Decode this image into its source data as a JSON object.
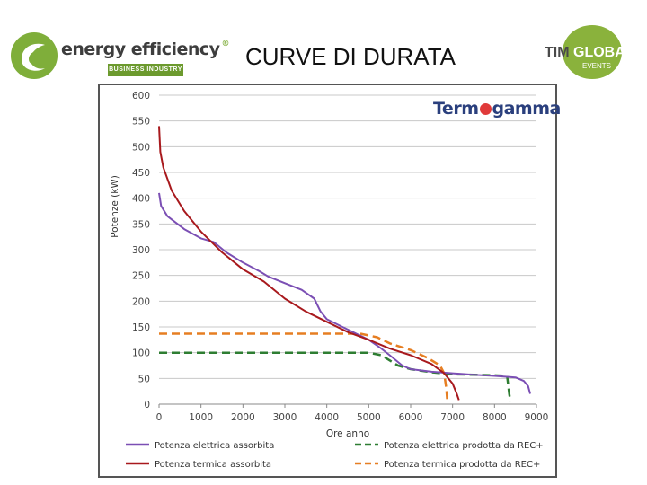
{
  "header": {
    "title": "CURVE DI DURATA",
    "left_logo": {
      "brand": "energy efficiency",
      "reg": "®",
      "tagline": "BUSINESS INDUSTRY"
    },
    "right_logo": {
      "part1": "TIM",
      "part2": "GLOBAL",
      "sub": "EVENTS"
    },
    "chart_logo": {
      "before": "Term",
      "after": "gamma"
    }
  },
  "colors": {
    "purple": "#7b4fb4",
    "dark_red": "#a8191d",
    "dark_green": "#2e7d32",
    "orange": "#e67e22",
    "brand_green": "#7fae3a"
  },
  "chart_data": {
    "type": "line",
    "title": "",
    "xlabel": "Ore anno",
    "ylabel": "Potenze (kW)",
    "xlim": [
      0,
      9000
    ],
    "ylim": [
      0,
      600
    ],
    "x_ticks": [
      0,
      1000,
      2000,
      3000,
      4000,
      5000,
      6000,
      7000,
      8000,
      9000
    ],
    "y_ticks": [
      0,
      50,
      100,
      150,
      200,
      250,
      300,
      350,
      400,
      450,
      500,
      550,
      600
    ],
    "grid": "horizontal",
    "legend_position": "bottom",
    "series": [
      {
        "name": "Potenza elettrica assorbita",
        "color": "#7b4fb4",
        "style": "solid",
        "points": [
          [
            0,
            410
          ],
          [
            50,
            385
          ],
          [
            200,
            365
          ],
          [
            600,
            340
          ],
          [
            1000,
            322
          ],
          [
            1300,
            315
          ],
          [
            1600,
            295
          ],
          [
            2000,
            275
          ],
          [
            2400,
            258
          ],
          [
            2600,
            248
          ],
          [
            3000,
            235
          ],
          [
            3400,
            222
          ],
          [
            3700,
            205
          ],
          [
            3850,
            180
          ],
          [
            4000,
            165
          ],
          [
            4500,
            145
          ],
          [
            5000,
            125
          ],
          [
            5300,
            108
          ],
          [
            5500,
            95
          ],
          [
            5800,
            75
          ],
          [
            6000,
            68
          ],
          [
            6500,
            63
          ],
          [
            7000,
            60
          ],
          [
            7500,
            57
          ],
          [
            8000,
            55
          ],
          [
            8500,
            52
          ],
          [
            8700,
            45
          ],
          [
            8800,
            35
          ],
          [
            8850,
            20
          ]
        ]
      },
      {
        "name": "Potenza termica assorbita",
        "color": "#a8191d",
        "style": "solid",
        "points": [
          [
            0,
            540
          ],
          [
            30,
            490
          ],
          [
            100,
            460
          ],
          [
            300,
            415
          ],
          [
            600,
            375
          ],
          [
            1000,
            335
          ],
          [
            1500,
            295
          ],
          [
            2000,
            262
          ],
          [
            2500,
            238
          ],
          [
            3000,
            205
          ],
          [
            3500,
            180
          ],
          [
            4000,
            160
          ],
          [
            4500,
            140
          ],
          [
            5000,
            125
          ],
          [
            5500,
            108
          ],
          [
            6000,
            95
          ],
          [
            6500,
            78
          ],
          [
            6800,
            60
          ],
          [
            7000,
            40
          ],
          [
            7100,
            20
          ],
          [
            7150,
            8
          ]
        ]
      },
      {
        "name": "Potenza elettrica prodotta da REC+",
        "color": "#2e7d32",
        "style": "dashed",
        "points": [
          [
            0,
            100
          ],
          [
            4000,
            100
          ],
          [
            5000,
            100
          ],
          [
            5300,
            95
          ],
          [
            5500,
            85
          ],
          [
            5700,
            75
          ],
          [
            6000,
            68
          ],
          [
            6500,
            62
          ],
          [
            7000,
            58
          ],
          [
            7500,
            57
          ],
          [
            8000,
            56
          ],
          [
            8300,
            55
          ],
          [
            8350,
            20
          ],
          [
            8380,
            5
          ]
        ]
      },
      {
        "name": "Potenza termica prodotta da REC+",
        "color": "#e67e22",
        "style": "dashed",
        "points": [
          [
            0,
            137
          ],
          [
            4000,
            137
          ],
          [
            4800,
            137
          ],
          [
            5200,
            130
          ],
          [
            5500,
            118
          ],
          [
            6000,
            105
          ],
          [
            6400,
            90
          ],
          [
            6700,
            75
          ],
          [
            6800,
            60
          ],
          [
            6850,
            30
          ],
          [
            6870,
            10
          ]
        ]
      }
    ]
  }
}
